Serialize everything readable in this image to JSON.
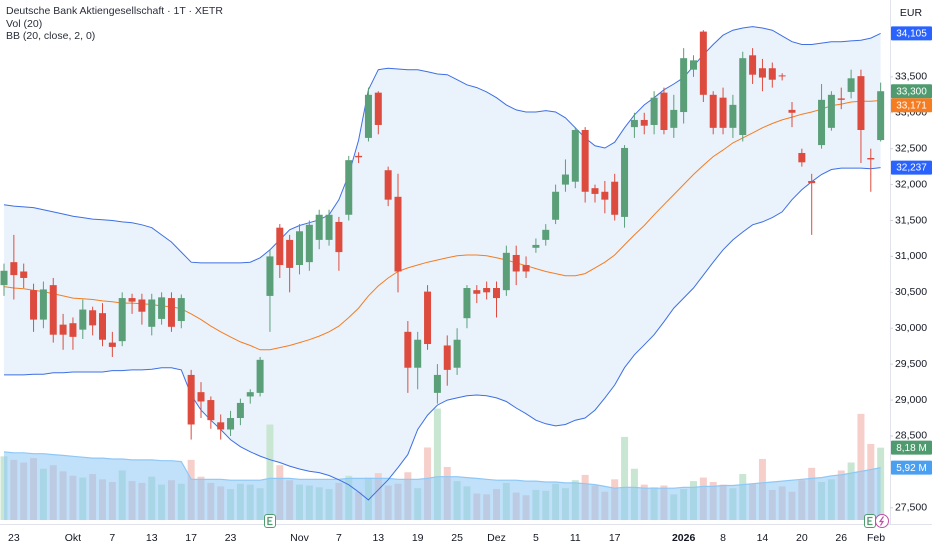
{
  "chart_data": {
    "type": "candlestick",
    "title": "Deutsche Bank Aktiengesellschaft · 1T · XETR",
    "volume_label": "Vol (20)",
    "bands_label": "BB (20, close, 2, 0)",
    "currency": "EUR",
    "categories": [
      null,
      "23",
      null,
      null,
      null,
      null,
      null,
      "Okt",
      null,
      null,
      null,
      "7",
      null,
      null,
      null,
      "13",
      null,
      null,
      null,
      "17",
      null,
      null,
      null,
      "23",
      null,
      null,
      null,
      null,
      null,
      null,
      "Nov",
      null,
      null,
      null,
      "7",
      null,
      null,
      null,
      "13",
      null,
      null,
      null,
      "19",
      null,
      null,
      null,
      "25",
      null,
      null,
      null,
      "Dez",
      null,
      null,
      null,
      "5",
      null,
      null,
      null,
      "11",
      null,
      null,
      null,
      "17",
      null,
      null,
      null,
      null,
      null,
      null,
      "2026",
      null,
      null,
      null,
      "8",
      null,
      null,
      null,
      "14",
      null,
      null,
      null,
      "20",
      null,
      null,
      null,
      "26",
      null,
      null,
      null,
      null,
      "Feb"
    ],
    "open": [
      30600,
      30920,
      30790,
      30530,
      30120,
      30600,
      30050,
      30070,
      29980,
      30250,
      30210,
      29800,
      29820,
      30420,
      30400,
      30020,
      30130,
      30420,
      30100,
      29350,
      29110,
      29000,
      28690,
      28590,
      28750,
      29050,
      29100,
      30450,
      31400,
      31230,
      30880,
      30920,
      31230,
      31230,
      31480,
      31580,
      32400,
      32650,
      33280,
      32200,
      31830,
      29950,
      29450,
      30510,
      29100,
      29760,
      29450,
      30140,
      30530,
      30560,
      30560,
      30530,
      31020,
      30880,
      31120,
      31230,
      31510,
      32000,
      32040,
      32760,
      31950,
      31900,
      32040,
      31550,
      32800,
      32900,
      32830,
      33280,
      32790,
      33010,
      33600,
      34130,
      33250,
      33210,
      32790,
      32690,
      33800,
      33620,
      33620,
      33520,
      33040,
      32440,
      32050,
      32550,
      32790,
      33200,
      33290,
      33510,
      32370,
      32620,
      null
    ],
    "high": [
      30900,
      31300,
      30900,
      30620,
      30650,
      30700,
      30200,
      30150,
      30400,
      30300,
      30350,
      29950,
      30500,
      30480,
      30480,
      30480,
      30500,
      30500,
      30470,
      29420,
      29250,
      29050,
      28800,
      28850,
      29020,
      29150,
      29600,
      31100,
      31450,
      31300,
      31450,
      31500,
      31650,
      31650,
      31550,
      32400,
      32450,
      33350,
      33300,
      32250,
      32150,
      30100,
      29950,
      30600,
      29500,
      29900,
      30000,
      30600,
      30600,
      30650,
      30650,
      31150,
      31150,
      31000,
      31250,
      31450,
      32000,
      32350,
      32800,
      32800,
      32000,
      32050,
      32150,
      32550,
      33000,
      33000,
      33300,
      33350,
      33250,
      33900,
      33800,
      34150,
      33300,
      33350,
      33250,
      33850,
      33900,
      33750,
      33700,
      33550,
      33150,
      32500,
      32150,
      33400,
      33300,
      33350,
      33600,
      33600,
      32500,
      33420,
      null
    ],
    "low": [
      30450,
      30400,
      30560,
      29950,
      30000,
      29800,
      29700,
      29700,
      29850,
      29900,
      29750,
      29600,
      29750,
      30200,
      30050,
      29900,
      30050,
      29950,
      30000,
      28450,
      28750,
      28600,
      28450,
      28500,
      28650,
      28950,
      29050,
      29950,
      30700,
      30500,
      30750,
      30800,
      31100,
      31150,
      30800,
      31500,
      32300,
      32600,
      32700,
      31700,
      30500,
      29100,
      29150,
      29700,
      28950,
      29200,
      29350,
      30000,
      30350,
      30400,
      30150,
      30450,
      30600,
      30700,
      31050,
      31150,
      31450,
      31900,
      31950,
      31750,
      31750,
      31600,
      31500,
      31400,
      32650,
      32700,
      32700,
      32700,
      32650,
      32850,
      33500,
      33150,
      32700,
      32700,
      32650,
      32600,
      33400,
      33300,
      33350,
      33450,
      32800,
      32250,
      31300,
      32500,
      32750,
      33050,
      33200,
      32300,
      31900,
      32600,
      null
    ],
    "close": [
      30800,
      30740,
      30700,
      30120,
      30540,
      29910,
      29910,
      29880,
      30260,
      30040,
      29840,
      29740,
      30420,
      30370,
      30230,
      30400,
      30430,
      30020,
      30420,
      28660,
      28980,
      28720,
      28590,
      28750,
      28960,
      29110,
      29560,
      31000,
      30880,
      30840,
      31350,
      31440,
      31580,
      31580,
      31060,
      32340,
      32380,
      33250,
      32830,
      31790,
      30790,
      29450,
      29840,
      29780,
      29350,
      29420,
      29840,
      30560,
      30480,
      30500,
      30420,
      31050,
      30790,
      30790,
      31160,
      31370,
      31900,
      32140,
      32760,
      31900,
      31870,
      31790,
      31580,
      32510,
      32900,
      32820,
      33210,
      32760,
      33040,
      33760,
      33730,
      33250,
      32790,
      32790,
      33110,
      33760,
      33530,
      33490,
      33460,
      33510,
      33000,
      32310,
      32020,
      33180,
      33250,
      33180,
      33480,
      32760,
      32350,
      33300,
      null
    ],
    "volume": [
      7.2,
      6.8,
      6.5,
      7.0,
      5.8,
      6.2,
      5.5,
      5.0,
      4.8,
      5.2,
      4.6,
      4.3,
      5.6,
      4.4,
      4.2,
      4.9,
      4.0,
      4.5,
      4.1,
      6.8,
      4.9,
      4.2,
      3.8,
      3.5,
      4.1,
      4.0,
      3.6,
      10.8,
      6.2,
      4.5,
      4.0,
      3.9,
      3.7,
      3.5,
      4.2,
      5.0,
      3.2,
      4.8,
      5.3,
      3.9,
      4.1,
      5.4,
      3.6,
      8.2,
      12.6,
      6.0,
      4.4,
      3.8,
      3.0,
      2.9,
      3.5,
      4.2,
      3.1,
      2.8,
      3.4,
      3.3,
      4.1,
      3.6,
      4.5,
      5.1,
      3.9,
      3.2,
      4.6,
      9.4,
      5.8,
      4.0,
      3.7,
      3.9,
      2.9,
      3.5,
      4.4,
      4.8,
      4.3,
      4.0,
      3.6,
      5.2,
      4.1,
      6.9,
      3.4,
      3.8,
      3.2,
      4.5,
      5.9,
      4.3,
      4.6,
      5.6,
      6.5,
      12.0,
      8.6,
      8.18,
      null
    ],
    "volume_ma": [
      7.7,
      7.6,
      7.6,
      7.5,
      7.5,
      7.4,
      7.3,
      7.2,
      7.1,
      7.0,
      7.0,
      6.9,
      6.9,
      6.8,
      6.8,
      6.8,
      6.7,
      6.7,
      6.6,
      4.6,
      4.6,
      4.6,
      4.6,
      4.5,
      4.5,
      4.5,
      4.5,
      4.7,
      4.7,
      4.7,
      4.6,
      4.6,
      4.6,
      4.6,
      4.6,
      4.7,
      4.7,
      4.7,
      4.7,
      4.7,
      4.6,
      4.6,
      4.6,
      4.7,
      4.9,
      4.9,
      4.9,
      4.8,
      4.7,
      4.6,
      4.5,
      4.5,
      4.5,
      4.4,
      4.4,
      4.3,
      4.3,
      4.2,
      4.2,
      4.1,
      4.0,
      3.8,
      3.6,
      3.7,
      3.7,
      3.6,
      3.6,
      3.6,
      3.6,
      3.7,
      3.7,
      3.8,
      3.8,
      3.9,
      3.9,
      4.0,
      4.1,
      4.2,
      4.3,
      4.4,
      4.5,
      4.6,
      4.7,
      4.8,
      5.0,
      5.1,
      5.3,
      5.5,
      5.7,
      5.92,
      null
    ],
    "bb_upper": [
      31720,
      31700,
      31690,
      31680,
      31650,
      31620,
      31590,
      31560,
      31540,
      31520,
      31510,
      31500,
      31480,
      31470,
      31440,
      31400,
      31300,
      31200,
      31060,
      30920,
      30910,
      30910,
      30910,
      30910,
      30910,
      30920,
      30980,
      31090,
      31230,
      31370,
      31430,
      31470,
      31510,
      31580,
      31790,
      32140,
      32620,
      33320,
      33600,
      33620,
      33610,
      33600,
      33600,
      33570,
      33540,
      33530,
      33460,
      33390,
      33350,
      33290,
      33210,
      33110,
      33040,
      33010,
      33010,
      33030,
      33010,
      32930,
      32790,
      32650,
      32540,
      32510,
      32590,
      32790,
      32970,
      33110,
      33210,
      33320,
      33400,
      33490,
      33650,
      33810,
      33950,
      34080,
      34150,
      34180,
      34200,
      34180,
      34150,
      34070,
      33990,
      33950,
      33950,
      33970,
      33990,
      33990,
      34000,
      34010,
      34040,
      34105,
      null
    ],
    "bb_basis": [
      30580,
      30560,
      30550,
      30530,
      30510,
      30480,
      30450,
      30420,
      30410,
      30400,
      30380,
      30370,
      30350,
      30350,
      30340,
      30330,
      30310,
      30300,
      30270,
      30200,
      30120,
      30030,
      29950,
      29880,
      29810,
      29760,
      29700,
      29700,
      29730,
      29760,
      29800,
      29840,
      29890,
      29950,
      30030,
      30150,
      30280,
      30450,
      30590,
      30700,
      30790,
      30840,
      30880,
      30920,
      30950,
      30980,
      31010,
      31020,
      31020,
      31010,
      30980,
      30950,
      30910,
      30870,
      30830,
      30790,
      30760,
      30730,
      30730,
      30760,
      30840,
      30920,
      31020,
      31160,
      31300,
      31430,
      31580,
      31720,
      31860,
      32000,
      32140,
      32270,
      32390,
      32480,
      32580,
      32650,
      32720,
      32790,
      32850,
      32900,
      32940,
      32980,
      33010,
      33050,
      33100,
      33120,
      33150,
      33160,
      33160,
      33171,
      null
    ],
    "bb_lower": [
      29350,
      29350,
      29350,
      29360,
      29360,
      29380,
      29380,
      29390,
      29390,
      29390,
      29390,
      29410,
      29410,
      29420,
      29420,
      29430,
      29450,
      29450,
      29420,
      29070,
      28860,
      28720,
      28590,
      28450,
      28350,
      28280,
      28220,
      28170,
      28130,
      28080,
      28040,
      28010,
      27990,
      27950,
      27890,
      27820,
      27720,
      27610,
      27750,
      27890,
      28060,
      28240,
      28590,
      28790,
      28930,
      29000,
      29030,
      29060,
      29070,
      29060,
      29030,
      28980,
      28890,
      28810,
      28720,
      28670,
      28640,
      28660,
      28720,
      28750,
      28860,
      29030,
      29210,
      29450,
      29630,
      29770,
      29910,
      30090,
      30280,
      30420,
      30560,
      30740,
      30920,
      31090,
      31230,
      31340,
      31440,
      31480,
      31540,
      31620,
      31790,
      31930,
      32040,
      32140,
      32210,
      32230,
      32230,
      32230,
      32220,
      32237,
      null
    ],
    "up_color": "#5a9f78",
    "down_color": "#dd4b3e",
    "volume_up_color": "#c9e6d3",
    "volume_down_color": "#f6cfcb",
    "volume_ma_color": "#8ec8f6",
    "band_color": "#3e6fe3",
    "basis_color": "#f57c21",
    "band_fill": "#eaf3fc",
    "ylim": [
      27330,
      34570
    ],
    "yticks": [
      {
        "value": 27500,
        "label": "27,500"
      },
      {
        "value": 28500,
        "label": "28,500"
      },
      {
        "value": 29000,
        "label": "29,000"
      },
      {
        "value": 29500,
        "label": "29,500"
      },
      {
        "value": 30000,
        "label": "30,000"
      },
      {
        "value": 30500,
        "label": "30,500"
      },
      {
        "value": 31000,
        "label": "31,000"
      },
      {
        "value": 31500,
        "label": "31,500"
      },
      {
        "value": 32000,
        "label": "32,000"
      },
      {
        "value": 32500,
        "label": "32,500"
      },
      {
        "value": 33000,
        "label": "33,000"
      },
      {
        "value": 33500,
        "label": "33,500"
      }
    ],
    "volume_ylim": [
      0,
      58.8
    ],
    "price_markers": [
      {
        "value": 34105,
        "label": "34,105",
        "color": "#2962ff"
      },
      {
        "value": 33300,
        "label": "33,300",
        "color": "#4f9a6f"
      },
      {
        "value": 33171,
        "label": "33,171",
        "color": "#f57c21"
      },
      {
        "value": 32237,
        "label": "32,237",
        "color": "#2962ff"
      }
    ],
    "volume_markers": [
      {
        "value": 8.18,
        "label": "8,18 M",
        "color": "#4f9a6f"
      },
      {
        "value": 5.92,
        "label": "5,92 M",
        "color": "#4a9ff0"
      }
    ]
  }
}
